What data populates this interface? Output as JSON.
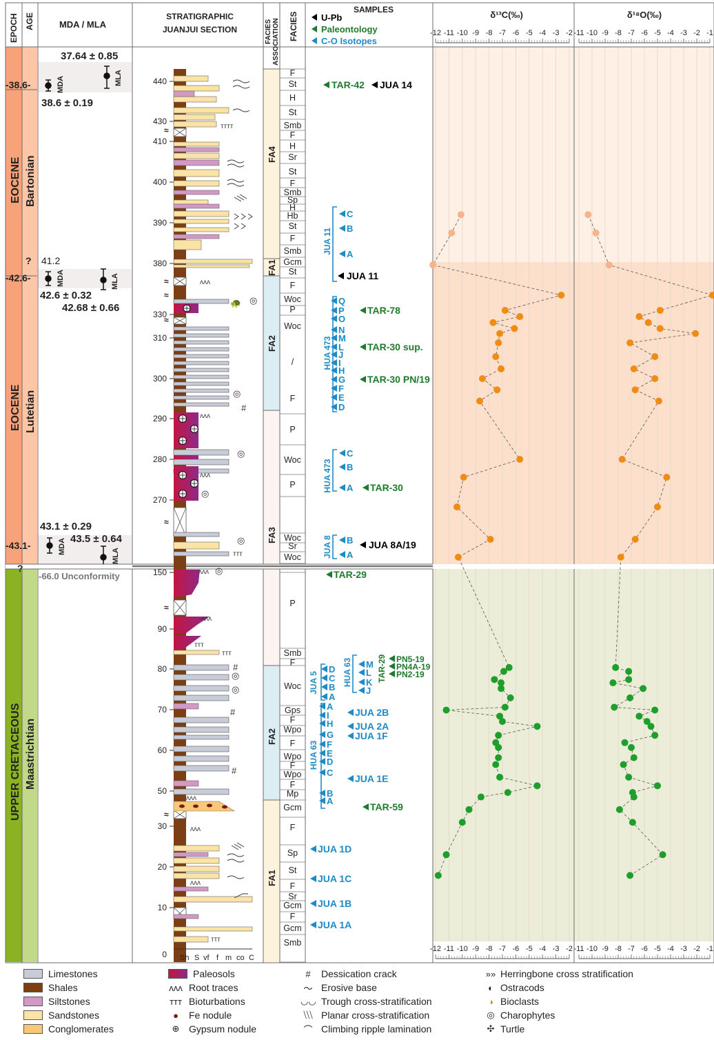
{
  "headers": {
    "epoch": "EPOCH",
    "age": "AGE",
    "mda_mla": "MDA / MLA",
    "section_line1": "STRATIGRAPHIC",
    "section_line2": "JUANJUI SECTION",
    "facies_association_line1": "FACIES",
    "facies_association_line2": "ASSOCIATION",
    "facies": "FACIES",
    "samples": "SAMPLES",
    "sample_types": [
      "U-Pb",
      "Paleontology",
      "C-O Isotopes"
    ],
    "d13c": "δ¹³C(‰)",
    "d18o": "δ¹⁸O(‰)"
  },
  "epochs": [
    {
      "epoch": "EOCENE",
      "age": "Bartonian"
    },
    {
      "epoch": "EOCENE",
      "age": "Lutetian"
    },
    {
      "epoch": "UPPER CRETACEOUS",
      "age": "Maastrichtian"
    }
  ],
  "age_ticks": [
    "-38.6-",
    "-42.6-",
    "-43.1-",
    "?",
    "?"
  ],
  "dates": [
    "37.64 ± 0.85",
    "38.6 ± 0.19",
    "41.2",
    "42.6 ± 0.32",
    "42.68 ± 0.66",
    "43.1 ± 0.29",
    "43.5 ± 0.64",
    "-66.0 Unconformity"
  ],
  "date_tags": [
    "MDA",
    "MLA"
  ],
  "depth_labels": [
    "440",
    "430",
    "410",
    "400",
    "390",
    "380",
    "330",
    "310",
    "300",
    "290",
    "280",
    "270",
    "150",
    "90",
    "80",
    "70",
    "60",
    "50",
    "30",
    "20",
    "10",
    "0"
  ],
  "grain_size_axis": [
    "Sh",
    "S",
    "vf",
    "f",
    "m",
    "co",
    "C"
  ],
  "facies_associations": [
    "FA4",
    "FA1",
    "FA2",
    "FA3",
    "FA2",
    "FA1"
  ],
  "facies_codes": [
    "F",
    "St",
    "H",
    "St",
    "Smb",
    "F",
    "H",
    "Sr",
    "St",
    "F",
    "Smb",
    "Sp",
    "H",
    "Hb",
    "St",
    "F",
    "Smb",
    "Gcm",
    "St",
    "F",
    "Woc",
    "P",
    "Woc",
    "/",
    "F",
    "P",
    "Woc",
    "P",
    "Woc",
    "Sr",
    "Woc",
    "P",
    "Smb",
    "F",
    "Woc",
    "Gps",
    "F",
    "Wpo",
    "F",
    "Wpo",
    "F",
    "Wpo",
    "F",
    "Mp",
    "Gcm",
    "F",
    "Sp",
    "St",
    "F",
    "Sr",
    "Gcm",
    "F",
    "Gcm",
    "Smb"
  ],
  "sample_labels": {
    "upb": [
      "JUA 14",
      "JUA 11",
      "JUA 8A/19"
    ],
    "paleo": [
      "TAR-42",
      "TAR-78",
      "TAR-30 sup.",
      "TAR-30 PN/19",
      "TAR-30",
      "TAR-29",
      "TAR-29",
      "PN5-19",
      "PN4A-19",
      "PN2-19",
      "TAR-59"
    ],
    "isotope_groups": [
      "JUA 11",
      "HUA 473",
      "HUA 473",
      "JUA 8",
      "HUA 63",
      "JUA 5",
      "HUA 63"
    ],
    "isotope_letters": [
      "C",
      "B",
      "A",
      "Q",
      "P",
      "O",
      "N",
      "M",
      "L",
      "J",
      "I",
      "H",
      "G",
      "F",
      "E",
      "D",
      "C",
      "B",
      "A",
      "B",
      "A",
      "M",
      "L",
      "K",
      "J",
      "D",
      "C",
      "B",
      "A",
      "I",
      "H",
      "G",
      "F",
      "E",
      "D",
      "C",
      "B",
      "A"
    ],
    "isotope_named": [
      "JUA 2B",
      "JUA 2A",
      "JUA 1F",
      "JUA 1E",
      "JUA 1D",
      "JUA 1C",
      "JUA 1B",
      "JUA 1A"
    ]
  },
  "axis_ticks": [
    "-12",
    "-11",
    "-10",
    "-9",
    "-8",
    "-7",
    "-6",
    "-5",
    "-4",
    "-3",
    "-2",
    "-1"
  ],
  "chart_data": [
    {
      "type": "scatter",
      "title": "δ¹³C(‰)",
      "xlim": [
        -12,
        -2
      ],
      "series": [
        {
          "color": "#f6b48a",
          "values": [
            [
              -10.1,
              392.0
            ],
            [
              -10.8,
              387.5
            ],
            [
              -12.2,
              377.5
            ]
          ]
        },
        {
          "color": "#f08c14",
          "values": [
            [
              -2.6,
              336.0
            ],
            [
              -6.8,
              331.5
            ],
            [
              -5.7,
              328.3
            ],
            [
              -7.7,
              323.5
            ],
            [
              -6.1,
              318.5
            ],
            [
              -7.2,
              314.0
            ],
            [
              -7.3,
              308.8
            ],
            [
              -7.5,
              305.4
            ],
            [
              -7.1,
              302.4
            ],
            [
              -8.5,
              300.0
            ],
            [
              -7.4,
              297.2
            ],
            [
              -8.7,
              294.4
            ],
            [
              -5.7,
              280.0
            ],
            [
              -9.9,
              275.6
            ],
            [
              -10.4,
              269.3
            ],
            [
              -7.9,
              266.0
            ],
            [
              -10.3,
              262.3
            ]
          ]
        },
        {
          "color": "#1e9e2a",
          "values": [
            [
              -6.5,
              80.5
            ],
            [
              -6.9,
              79.4
            ],
            [
              -7.6,
              77.4
            ],
            [
              -7.1,
              76.6
            ],
            [
              -7.1,
              75.2
            ],
            [
              -6.4,
              72.9
            ],
            [
              -6.8,
              70.6
            ],
            [
              -11.2,
              69.9
            ],
            [
              -7.2,
              68.4
            ],
            [
              -7.0,
              67.1
            ],
            [
              -4.4,
              65.9
            ],
            [
              -7.3,
              63.7
            ],
            [
              -7.5,
              61.9
            ],
            [
              -7.3,
              60.7
            ],
            [
              -7.3,
              58.2
            ],
            [
              -7.5,
              56.5
            ],
            [
              -7.2,
              53.4
            ],
            [
              -4.4,
              51.3
            ],
            [
              -6.6,
              48.9
            ],
            [
              -8.6,
              45.5
            ],
            [
              -9.5,
              36.9
            ],
            [
              -10.0,
              31.6
            ],
            [
              -11.2,
              23.0
            ],
            [
              -11.8,
              17.9
            ]
          ]
        }
      ]
    },
    {
      "type": "scatter",
      "title": "δ¹⁸O(‰)",
      "xlim": [
        -11,
        -1
      ],
      "series": [
        {
          "color": "#f6b48a",
          "values": [
            [
              -10.3,
              392.0
            ],
            [
              -9.7,
              387.5
            ],
            [
              -8.7,
              377.5
            ]
          ]
        },
        {
          "color": "#f08c14",
          "values": [
            [
              -0.8,
              336.0
            ],
            [
              -4.8,
              331.5
            ],
            [
              -6.4,
              328.3
            ],
            [
              -5.7,
              323.5
            ],
            [
              -4.8,
              318.5
            ],
            [
              -2.1,
              314.0
            ],
            [
              -7.1,
              308.8
            ],
            [
              -5.2,
              305.4
            ],
            [
              -6.8,
              302.4
            ],
            [
              -5.2,
              300.0
            ],
            [
              -6.7,
              297.2
            ],
            [
              -4.9,
              294.4
            ],
            [
              -7.7,
              280.0
            ],
            [
              -4.3,
              275.6
            ],
            [
              -5.0,
              269.3
            ],
            [
              -6.7,
              266.0
            ],
            [
              -7.8,
              262.3
            ]
          ]
        },
        {
          "color": "#1e9e2a",
          "values": [
            [
              -8.2,
              80.5
            ],
            [
              -7.2,
              79.4
            ],
            [
              -7.2,
              77.4
            ],
            [
              -8.4,
              76.6
            ],
            [
              -6.1,
              75.2
            ],
            [
              -7.1,
              72.9
            ],
            [
              -8.3,
              70.6
            ],
            [
              -5.2,
              69.9
            ],
            [
              -6.4,
              68.4
            ],
            [
              -5.8,
              67.1
            ],
            [
              -5.5,
              65.9
            ],
            [
              -5.2,
              63.7
            ],
            [
              -7.5,
              61.9
            ],
            [
              -7.0,
              60.7
            ],
            [
              -6.8,
              58.2
            ],
            [
              -7.6,
              56.5
            ],
            [
              -7.2,
              53.4
            ],
            [
              -5.0,
              51.3
            ],
            [
              -6.9,
              48.9
            ],
            [
              -6.8,
              45.5
            ],
            [
              -7.9,
              36.9
            ],
            [
              -6.9,
              31.6
            ],
            [
              -4.6,
              23.0
            ],
            [
              -7.1,
              17.9
            ]
          ]
        }
      ]
    }
  ],
  "legend": {
    "lithology": [
      "Limestones",
      "Shales",
      "Siltstones",
      "Sandstones",
      "Conglomerates"
    ],
    "features": [
      "Paleosols",
      "Root traces",
      "Bioturbations",
      "Fe nodule",
      "Gypsum nodule"
    ],
    "structures": [
      "Dessication crack",
      "Erosive base",
      "Trough cross-stratification",
      "Planar cross-stratification",
      "Climbing ripple lamination"
    ],
    "fossils": [
      "Herringbone cross stratification",
      "Ostracods",
      "Bioclasts",
      "Charophytes",
      "Turtle"
    ]
  }
}
